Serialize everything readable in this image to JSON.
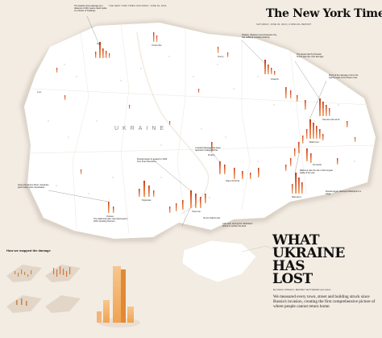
{
  "header": {
    "left_dateline": "THE NEW YORK TIMES SATURDAY, JUNE 29, 2024",
    "masthead": "The New York Times",
    "right_dateline": "SATURDAY, JUNE 29, 2024 | A SPECIAL REPORT"
  },
  "map": {
    "country_label": "UKRAINE",
    "cities": [
      {
        "name": "Kyiv"
      },
      {
        "name": "Kharkiv"
      },
      {
        "name": "Donetsk"
      },
      {
        "name": "Mariupol"
      },
      {
        "name": "Zaporizhzhia"
      },
      {
        "name": "Kherson"
      },
      {
        "name": "Mykolaiv"
      },
      {
        "name": "Odesa"
      },
      {
        "name": "Lviv"
      },
      {
        "name": "Dnipro"
      },
      {
        "name": "Sievierodonetsk"
      },
      {
        "name": "Bakhmut"
      },
      {
        "name": "Nova Kakhovka"
      },
      {
        "name": "Chernihiv"
      },
      {
        "name": "Sumy"
      }
    ],
    "annotations": [
      {
        "text": "The heights show damage at a distance of 400 meters. Each spike is a cluster of buildings."
      },
      {
        "text": "Kharkiv, Ukraine's second-largest city, has suffered constant shelling."
      },
      {
        "text": "The areas held by Russian forces saw the most damage."
      },
      {
        "text": "Much of the damage is from the fighting east of the Dnipro river."
      },
      {
        "text": "Crowded damage has been reported in Zaporizhzhia."
      },
      {
        "text": "Russia began its assault in 2022 from three directions."
      },
      {
        "text": "Along the Dnipro River, Ukrainian grain towns were devastated."
      },
      {
        "text": "Bakhmut was the site of the longest battle of the war."
      },
      {
        "text": "The Kakhovka dam was destroyed in 2023, flooding Kherson."
      },
      {
        "text": "Russia largely destroyed Mariupol in a siege."
      },
      {
        "text": "Last year, among the Ukrainians' efforts to reclaim the land."
      }
    ]
  },
  "inset": {
    "title": "How we mapped the damage"
  },
  "story": {
    "headline": [
      "WHAT",
      "UKRAINE",
      "HAS",
      "LOST"
    ],
    "byline": "By ANJALI SINGHVI, JEFFREY GETTLEMAN and others",
    "deck": "We measured every town, street and building struck since Russia's invasion, creating the first comprehensive picture of where people cannot return home."
  },
  "colors": {
    "background": "#f3ece3",
    "land": "#ffffff",
    "damage_low": "#f7c59a",
    "damage_high": "#d2461a",
    "sea": "#f3ece3"
  }
}
